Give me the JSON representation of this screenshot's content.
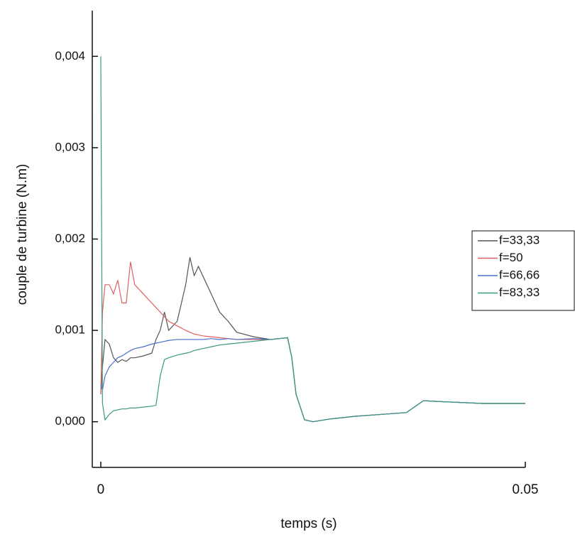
{
  "chart_data": {
    "type": "line",
    "xlabel": "temps (s)",
    "ylabel": "couple de turbine (N.m)",
    "x": [
      0,
      0.0002,
      0.0005,
      0.001,
      0.0015,
      0.002,
      0.0025,
      0.003,
      0.0035,
      0.004,
      0.005,
      0.006,
      0.0065,
      0.007,
      0.0075,
      0.008,
      0.009,
      0.01,
      0.0105,
      0.011,
      0.0115,
      0.012,
      0.013,
      0.014,
      0.015,
      0.016,
      0.018,
      0.02,
      0.022,
      0.0225,
      0.023,
      0.024,
      0.025,
      0.027,
      0.03,
      0.033,
      0.036,
      0.038,
      0.04,
      0.045,
      0.05
    ],
    "series": [
      {
        "name": "f=33,33",
        "color": "#555555",
        "values": [
          0.0003,
          0.0006,
          0.0009,
          0.00085,
          0.0007,
          0.00065,
          0.00068,
          0.00066,
          0.0007,
          0.0007,
          0.00072,
          0.00075,
          0.0009,
          0.001,
          0.0012,
          0.001,
          0.0011,
          0.0015,
          0.0018,
          0.0016,
          0.0017,
          0.0016,
          0.0014,
          0.0012,
          0.0011,
          0.00098,
          0.00093,
          0.0009,
          0.00092,
          0.0007,
          0.0003,
          2e-05,
          0.0,
          3e-05,
          6e-05,
          8e-05,
          0.0001,
          0.00023,
          0.00022,
          0.0002,
          0.0002
        ]
      },
      {
        "name": "f=50",
        "color": "#e06060",
        "values": [
          0.0003,
          0.0012,
          0.0015,
          0.0015,
          0.0014,
          0.00155,
          0.0013,
          0.0013,
          0.00175,
          0.0015,
          0.0014,
          0.0013,
          0.00125,
          0.0012,
          0.00115,
          0.0011,
          0.00105,
          0.001,
          0.00098,
          0.00096,
          0.00095,
          0.00094,
          0.00093,
          0.00092,
          0.00091,
          0.0009,
          0.0009,
          0.0009,
          0.00092,
          0.0007,
          0.0003,
          2e-05,
          0.0,
          3e-05,
          6e-05,
          8e-05,
          0.0001,
          0.00023,
          0.00022,
          0.0002,
          0.0002
        ]
      },
      {
        "name": "f=66,66",
        "color": "#4a6fc8",
        "values": [
          0.0004,
          0.00035,
          0.0005,
          0.0006,
          0.00065,
          0.0007,
          0.00072,
          0.00075,
          0.00078,
          0.0008,
          0.00082,
          0.00085,
          0.00086,
          0.00087,
          0.00088,
          0.00089,
          0.0009,
          0.0009,
          0.0009,
          0.0009,
          0.0009,
          0.0009,
          0.00091,
          0.0009,
          0.00091,
          0.0009,
          0.00091,
          0.0009,
          0.00092,
          0.0007,
          0.0003,
          2e-05,
          0.0,
          3e-05,
          6e-05,
          8e-05,
          0.0001,
          0.00023,
          0.00022,
          0.0002,
          0.0002
        ]
      },
      {
        "name": "f=83,33",
        "color": "#3a9a80",
        "values": [
          0.004,
          0.0002,
          2e-05,
          8e-05,
          0.00012,
          0.00013,
          0.00014,
          0.00014,
          0.00015,
          0.00015,
          0.00016,
          0.00017,
          0.00018,
          0.0005,
          0.00068,
          0.0007,
          0.00073,
          0.00075,
          0.00076,
          0.00078,
          0.00079,
          0.0008,
          0.00082,
          0.00084,
          0.00085,
          0.00086,
          0.00088,
          0.0009,
          0.00092,
          0.0007,
          0.0003,
          2e-05,
          0.0,
          3e-05,
          6e-05,
          8e-05,
          0.0001,
          0.00023,
          0.00022,
          0.0002,
          0.0002
        ]
      }
    ],
    "xlim": [
      -0.001,
      0.05
    ],
    "ylim": [
      -0.0005,
      0.0045
    ],
    "xticks": [
      0,
      0.05
    ],
    "yticks": [
      {
        "value": 0,
        "label": "0,000"
      },
      {
        "value": 0.001,
        "label": "0,001"
      },
      {
        "value": 0.002,
        "label": "0,002"
      },
      {
        "value": 0.003,
        "label": "0,003"
      },
      {
        "value": 0.004,
        "label": "0,004"
      }
    ],
    "legend": "right",
    "grid": false
  }
}
